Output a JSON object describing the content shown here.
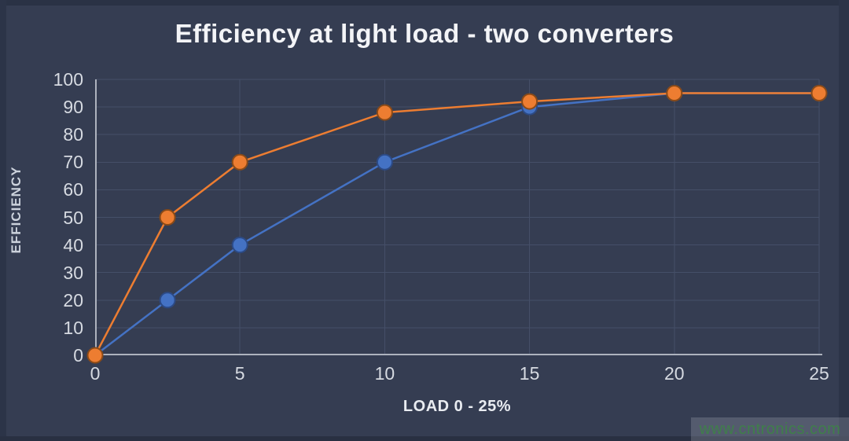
{
  "title": "Efficiency at light load - two converters",
  "watermark": {
    "text": "www.cntronics.com",
    "text_color": "#3f7f4a"
  },
  "chart_data": {
    "type": "line",
    "title": "Efficiency at light load - two converters",
    "xlabel": "LOAD 0 - 25%",
    "ylabel": "EFFICIENCY",
    "x": [
      0,
      2.5,
      5,
      10,
      15,
      20,
      25
    ],
    "series": [
      {
        "name": "blue-converter",
        "color": "#4472C4",
        "marker_edge": "#2c4a85",
        "values": [
          0,
          20,
          40,
          70,
          90,
          95,
          95
        ]
      },
      {
        "name": "orange-converter",
        "color": "#ED7D31",
        "marker_edge": "#8a4a17",
        "values": [
          0,
          50,
          70,
          88,
          92,
          95,
          95
        ]
      }
    ],
    "xlim": [
      0,
      25
    ],
    "ylim": [
      0,
      100
    ],
    "x_ticks": [
      0,
      5,
      10,
      15,
      20,
      25
    ],
    "y_ticks": [
      0,
      10,
      20,
      30,
      40,
      50,
      60,
      70,
      80,
      90,
      100
    ],
    "grid": true,
    "legend": false,
    "colors": {
      "background": "#353d52",
      "gridline": "#454f68",
      "axis_line": "#aeb3be",
      "tick_label": "#d6dae1",
      "title": "#f3f4f7"
    }
  }
}
